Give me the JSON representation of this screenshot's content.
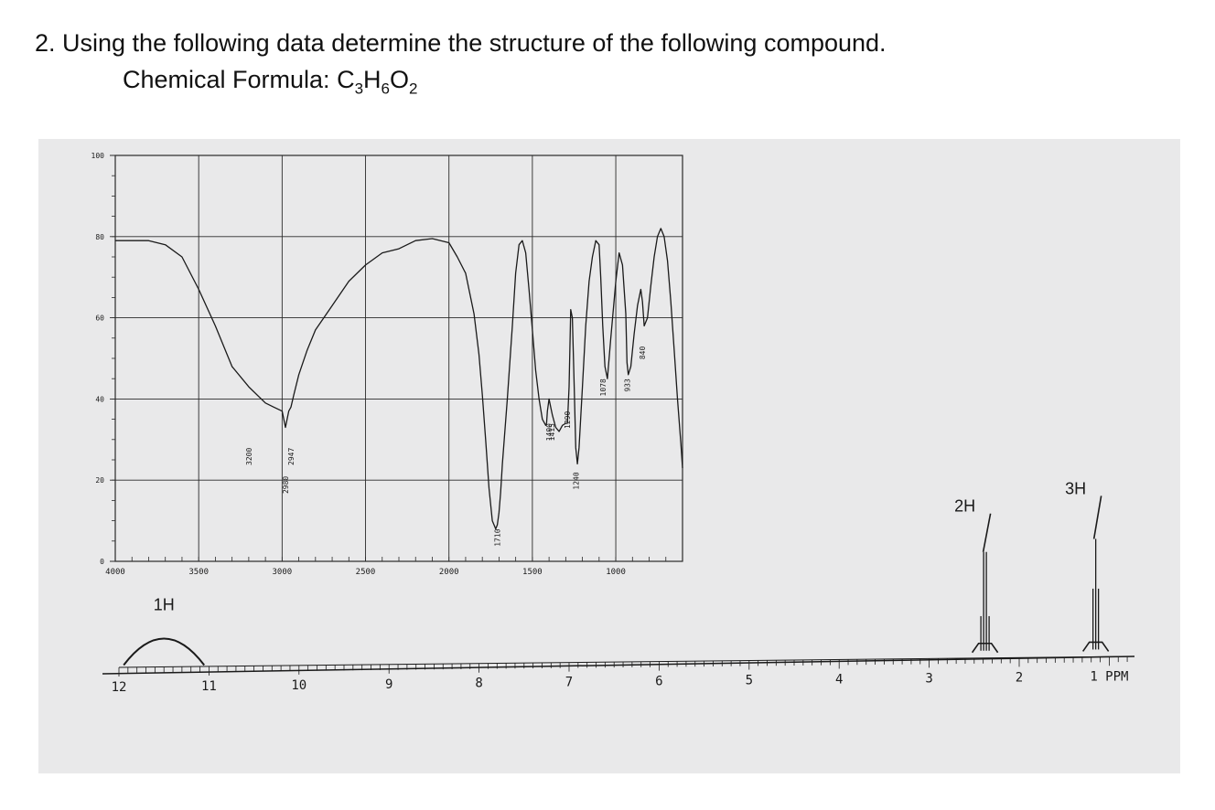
{
  "question": {
    "number_title": "2. Using the following data determine the structure of the following compound.",
    "formula_label": "Chemical Formula: ",
    "formula_parts": [
      {
        "t": "C",
        "sub": "3"
      },
      {
        "t": "H",
        "sub": "6"
      },
      {
        "t": "O",
        "sub": "2"
      }
    ]
  },
  "colors": {
    "ink": "#1a1a1a",
    "paper": "#e9e9ea",
    "grid": "#2a2a2a"
  },
  "chart_data": [
    {
      "type": "line",
      "name": "IR",
      "xlim": [
        4000,
        600
      ],
      "ylim": [
        0,
        100
      ],
      "x_ticks": [
        "4000",
        "3500",
        "3000",
        "2500",
        "2000",
        "1500",
        "1000"
      ],
      "x_tick_values": [
        4000,
        3500,
        3000,
        2500,
        2000,
        1500,
        1000
      ],
      "y_ticks": [
        "0",
        "20",
        "40",
        "60",
        "80",
        "100"
      ],
      "y_tick_values": [
        0,
        20,
        40,
        60,
        80,
        100
      ],
      "grid": true,
      "peak_labels": [
        {
          "label": "3200",
          "x": 3200,
          "y": 28
        },
        {
          "label": "2980",
          "x": 2980,
          "y": 21
        },
        {
          "label": "2947",
          "x": 2947,
          "y": 28
        },
        {
          "label": "1710",
          "x": 1710,
          "y": 8
        },
        {
          "label": "1400",
          "x": 1400,
          "y": 34
        },
        {
          "label": "1415",
          "x": 1385,
          "y": 34
        },
        {
          "label": "1290",
          "x": 1290,
          "y": 37
        },
        {
          "label": "1240",
          "x": 1240,
          "y": 22
        },
        {
          "label": "1078",
          "x": 1078,
          "y": 45
        },
        {
          "label": "933",
          "x": 933,
          "y": 45
        },
        {
          "label": "840",
          "x": 840,
          "y": 53
        }
      ],
      "x": [
        4000,
        3900,
        3800,
        3700,
        3600,
        3500,
        3400,
        3300,
        3200,
        3100,
        3050,
        3000,
        2980,
        2960,
        2947,
        2930,
        2900,
        2850,
        2800,
        2700,
        2600,
        2500,
        2400,
        2300,
        2200,
        2100,
        2000,
        1950,
        1900,
        1850,
        1820,
        1800,
        1780,
        1760,
        1740,
        1720,
        1710,
        1700,
        1690,
        1680,
        1650,
        1620,
        1600,
        1580,
        1560,
        1540,
        1520,
        1500,
        1480,
        1460,
        1440,
        1420,
        1415,
        1410,
        1400,
        1390,
        1380,
        1360,
        1340,
        1320,
        1300,
        1290,
        1280,
        1270,
        1260,
        1250,
        1240,
        1230,
        1220,
        1200,
        1180,
        1160,
        1140,
        1120,
        1100,
        1090,
        1078,
        1065,
        1050,
        1030,
        1000,
        980,
        960,
        940,
        933,
        925,
        910,
        890,
        870,
        850,
        840,
        830,
        810,
        790,
        770,
        750,
        730,
        710,
        690,
        670,
        650,
        630,
        610,
        600
      ],
      "y": [
        79,
        79,
        79,
        78,
        75,
        67,
        58,
        48,
        43,
        39,
        38,
        37,
        33,
        37,
        38,
        41,
        46,
        52,
        57,
        63,
        69,
        73,
        76,
        77,
        79,
        79.5,
        78.5,
        75,
        71,
        61,
        51,
        41,
        30,
        18,
        10,
        8,
        9,
        12,
        17,
        24,
        40,
        58,
        71,
        78,
        79,
        76,
        67,
        57,
        47,
        40,
        35,
        33.5,
        34,
        37,
        40,
        38,
        36,
        33,
        32,
        33.5,
        34,
        34,
        43,
        62,
        60,
        44,
        28,
        24,
        28,
        43,
        58,
        69,
        75,
        79,
        78,
        70,
        58,
        48,
        45,
        55,
        69,
        76,
        73,
        61,
        49,
        46,
        48,
        56,
        63,
        67,
        64,
        58,
        60,
        68,
        75,
        80,
        82,
        80,
        74,
        64,
        52,
        40,
        29,
        23
      ],
      "xlabel": "",
      "ylabel": ""
    },
    {
      "type": "line",
      "name": "1H NMR",
      "xlim": [
        12,
        0.75
      ],
      "x_ticks": [
        "12",
        "11",
        "10",
        "9",
        "8",
        "7",
        "6",
        "5",
        "4",
        "3",
        "2",
        "1 PPM"
      ],
      "x_tick_values": [
        12,
        11,
        10,
        9,
        8,
        7,
        6,
        5,
        4,
        3,
        2,
        1
      ],
      "signals": [
        {
          "shift_ppm": 11.5,
          "integration": "1H",
          "shape": "broad singlet"
        },
        {
          "shift_ppm": 2.38,
          "integration": "2H",
          "shape": "quartet"
        },
        {
          "shift_ppm": 1.15,
          "integration": "3H",
          "shape": "triplet"
        }
      ],
      "xlabel": "",
      "ylabel": ""
    }
  ]
}
